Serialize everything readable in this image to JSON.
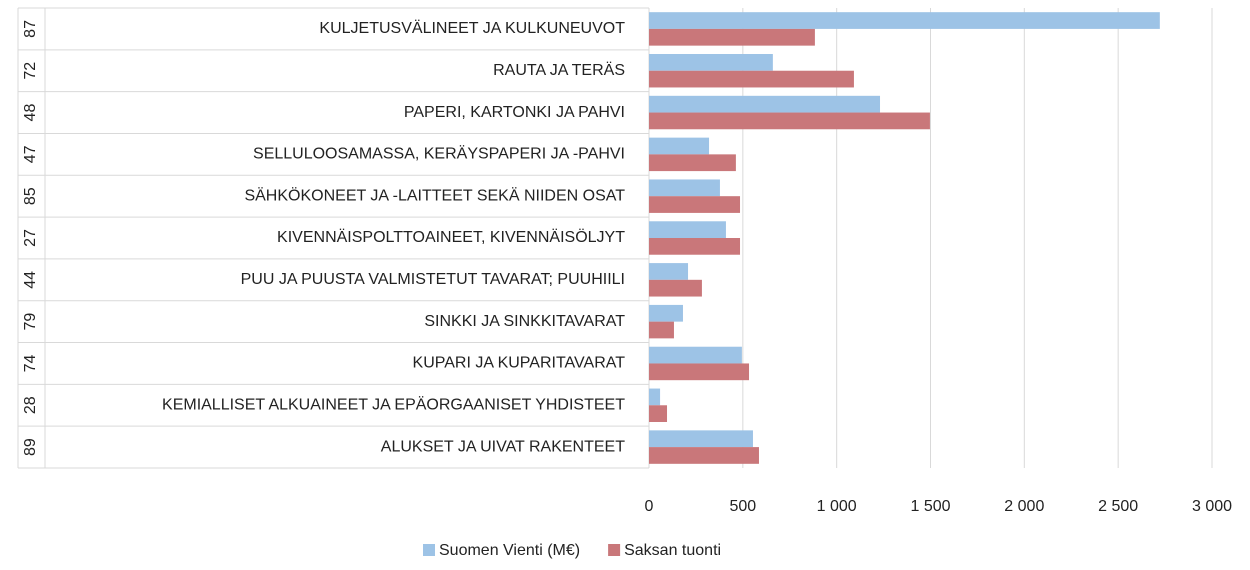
{
  "chart_data": {
    "type": "hbar",
    "categories": [
      "KULJETUSVÄLINEET JA KULKUNEUVOT",
      "RAUTA JA TERÄS",
      "PAPERI, KARTONKI JA PAHVI",
      "SELLULOOSAMASSA, KERÄYSPAPERI JA -PAHVI",
      "SÄHKÖKONEET JA -LAITTEET SEKÄ NIIDEN OSAT",
      "KIVENNÄISPOLTTOAINEET, KIVENNÄISÖLJYT",
      "PUU JA PUUSTA VALMISTETUT TAVARAT; PUUHIILI",
      "SINKKI JA SINKKITAVARAT",
      "KUPARI JA KUPARITAVARAT",
      "KEMIALLISET ALKUAINEET JA EPÄORGAANISET YHDISTEET",
      "ALUKSET JA UIVAT RAKENTEET"
    ],
    "category_codes": [
      "87",
      "72",
      "48",
      "47",
      "85",
      "27",
      "44",
      "79",
      "74",
      "28",
      "89"
    ],
    "series": [
      {
        "name": "Suomen Vienti (M€)",
        "color": "#9dc3e6",
        "values": [
          2722,
          660,
          1231,
          320,
          378,
          410,
          208,
          181,
          495,
          59,
          554
        ]
      },
      {
        "name": "Saksan tuonti",
        "color": "#c9777a",
        "values": [
          884,
          1092,
          1497,
          463,
          485,
          485,
          282,
          133,
          533,
          96,
          586
        ]
      }
    ],
    "xlim": [
      0,
      3000
    ],
    "xticks": [
      0,
      500,
      {
        "value": 1000,
        "label": "1 000"
      },
      {
        "value": 1500,
        "label": "1 500"
      },
      {
        "value": 2000,
        "label": "2 000"
      },
      {
        "value": 2500,
        "label": "2 500"
      },
      {
        "value": 3000,
        "label": "3 000"
      }
    ],
    "grid": true,
    "legend": "bottom"
  }
}
